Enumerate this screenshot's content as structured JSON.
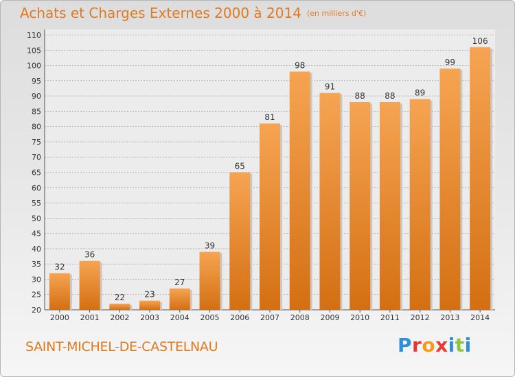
{
  "header": {
    "title": "Achats et Charges Externes 2000 à 2014",
    "unit": "(en milliers d'€)"
  },
  "footer": {
    "city": "SAINT-MICHEL-DE-CASTELNAU",
    "brand_letters": [
      {
        "char": "P",
        "color": "#2f8fd8"
      },
      {
        "char": "r",
        "color": "#e53935"
      },
      {
        "char": "o",
        "color": "#f29b1d"
      },
      {
        "char": "x",
        "color": "#e53935"
      },
      {
        "char": "i",
        "color": "#2f8fd8"
      },
      {
        "char": "t",
        "color": "#8cc63f"
      },
      {
        "char": "i",
        "color": "#2f8fd8"
      }
    ]
  },
  "chart_data": {
    "type": "bar",
    "categories": [
      "2000",
      "2001",
      "2002",
      "2003",
      "2004",
      "2005",
      "2006",
      "2007",
      "2008",
      "2009",
      "2010",
      "2011",
      "2012",
      "2013",
      "2014"
    ],
    "values": [
      32,
      36,
      22,
      23,
      27,
      39,
      65,
      81,
      98,
      91,
      88,
      88,
      89,
      99,
      106
    ],
    "ylim": [
      20,
      110
    ],
    "yticks": [
      20,
      25,
      30,
      35,
      40,
      45,
      50,
      55,
      60,
      65,
      70,
      75,
      80,
      85,
      90,
      95,
      100,
      105,
      110
    ],
    "grid": true,
    "bar_color_light": "#f6a452",
    "bar_color_dark": "#d46f12"
  }
}
